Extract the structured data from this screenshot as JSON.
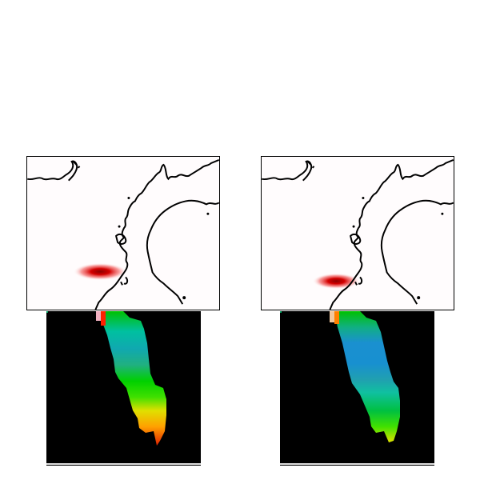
{
  "figure": {
    "panels": [
      {
        "id": "map-left",
        "kind": "map",
        "blob_color": "#cc0000",
        "background": "#fffcfd"
      },
      {
        "id": "map-right",
        "kind": "map",
        "blob_color": "#cc0000",
        "background": "#fffcfd"
      },
      {
        "id": "field-left",
        "kind": "colored-field",
        "palette": [
          "#d0d0d0",
          "#00a000",
          "#20c020",
          "#00c0c0",
          "#1a90d0",
          "#e0e000",
          "#ff8000",
          "#e00000"
        ]
      },
      {
        "id": "field-right",
        "kind": "colored-field",
        "palette": [
          "#d0d0d0",
          "#00a000",
          "#20c020",
          "#00c0c0",
          "#1a90d0",
          "#e0e000",
          "#ff8000"
        ]
      }
    ],
    "coastline_color": "#000000"
  }
}
